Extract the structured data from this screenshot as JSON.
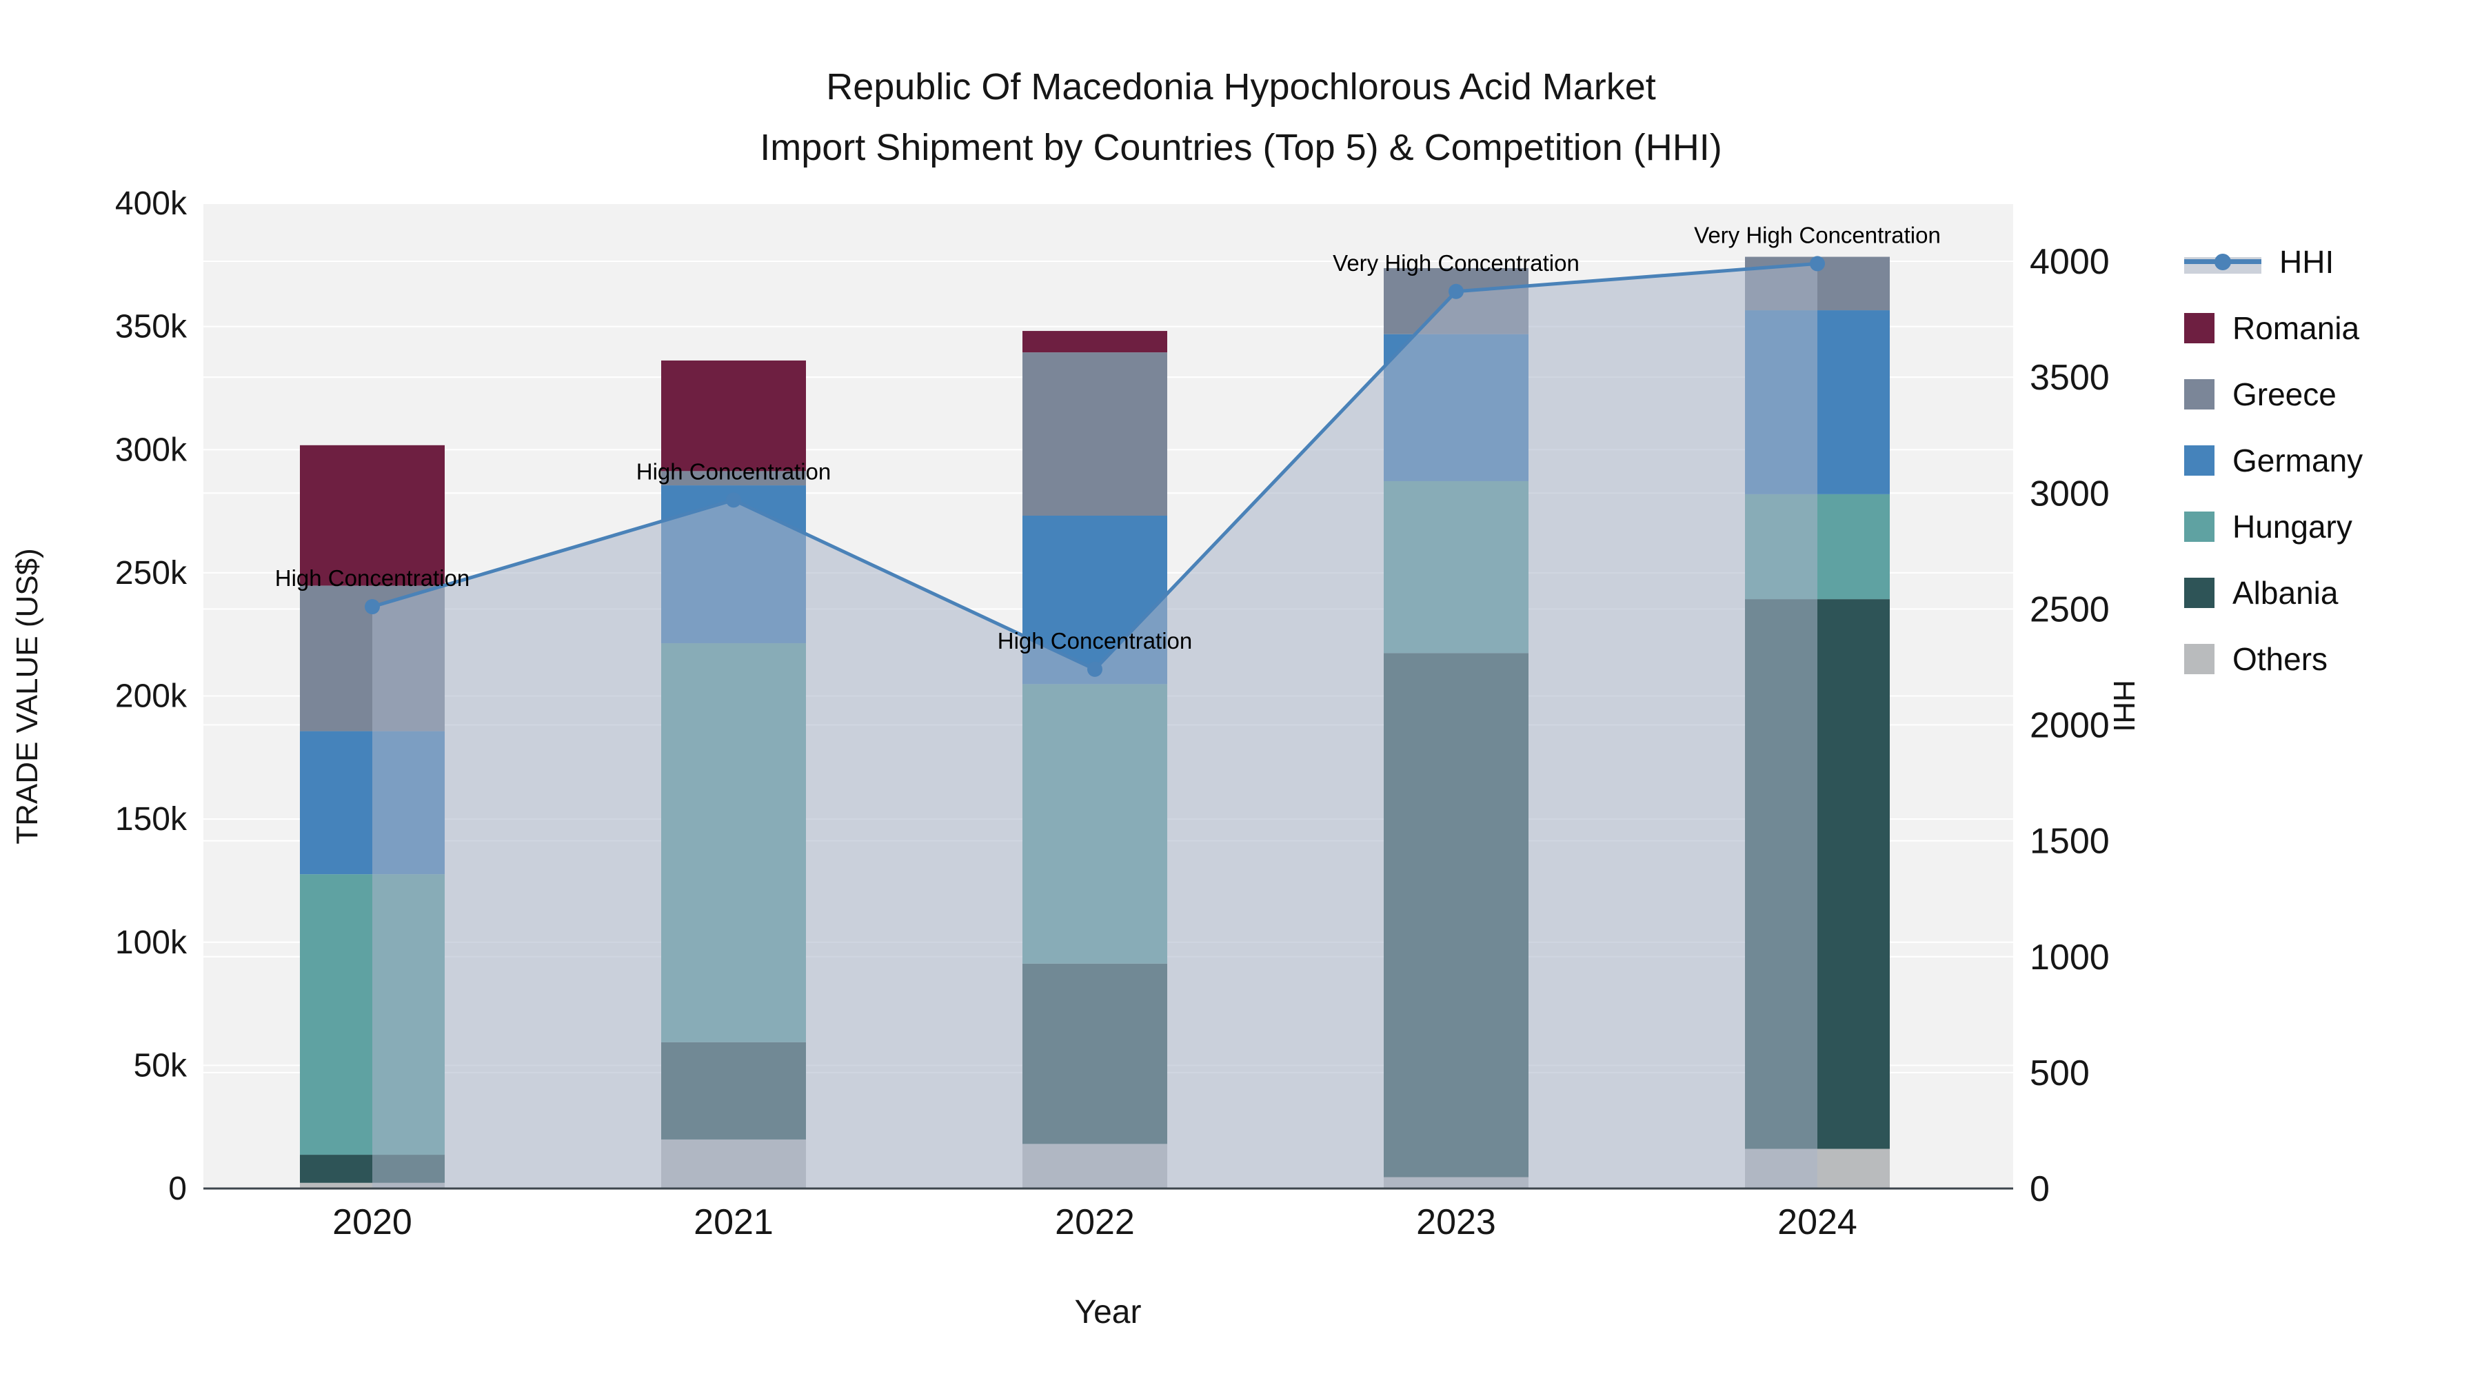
{
  "title": {
    "line1": "Republic Of Macedonia Hypochlorous Acid Market",
    "line2": "Import Shipment by Countries (Top 5) & Competition (HHI)"
  },
  "axes": {
    "x": {
      "title": "Year",
      "categories": [
        "2020",
        "2021",
        "2022",
        "2023",
        "2024"
      ]
    },
    "y_left": {
      "title": "TRADE VALUE (US$)",
      "tick_labels": [
        "0",
        "50k",
        "100k",
        "150k",
        "200k",
        "250k",
        "300k",
        "350k",
        "400k"
      ],
      "tick_values_k": [
        0,
        50,
        100,
        150,
        200,
        250,
        300,
        350,
        400
      ],
      "range_usd": [
        0,
        400000
      ]
    },
    "y_right": {
      "title": "HHI",
      "tick_labels": [
        "0",
        "500",
        "1000",
        "1500",
        "2000",
        "2500",
        "3000",
        "3500",
        "4000"
      ],
      "tick_values": [
        0,
        500,
        1000,
        1500,
        2000,
        2500,
        3000,
        3500,
        4000
      ],
      "range": [
        0,
        4250
      ]
    }
  },
  "legend": {
    "position": "right",
    "items": [
      {
        "label": "HHI",
        "type": "line",
        "color": "#4a82b8"
      },
      {
        "label": "Romania",
        "type": "swatch",
        "color": "#6e1f41"
      },
      {
        "label": "Greece",
        "type": "swatch",
        "color": "#7b8698"
      },
      {
        "label": "Germany",
        "type": "swatch",
        "color": "#4583bb"
      },
      {
        "label": "Hungary",
        "type": "swatch",
        "color": "#5fa2a2"
      },
      {
        "label": "Albania",
        "type": "swatch",
        "color": "#2e5457"
      },
      {
        "label": "Others",
        "type": "swatch",
        "color": "#b9bbbd"
      }
    ]
  },
  "colors": {
    "plot_bg": "#f2f2f2",
    "grid": "#ffffff",
    "axis_line": "#3d464d",
    "text": "#161616",
    "hhi_line": "#4a82b8",
    "hhi_area_fill": "#aab4c8",
    "hhi_area_opacity": 0.55
  },
  "chart_data": {
    "type": "combo: stacked bar (left axis) + line with markers and area fill (right axis)",
    "categories": [
      "2020",
      "2021",
      "2022",
      "2023",
      "2024"
    ],
    "unit": "US$ thousands (trade value), index points (HHI)",
    "stack_order": "bottom to top",
    "series": [
      {
        "name": "Others",
        "color": "#b9bbbd",
        "values_k": [
          2.3,
          19.9,
          18.1,
          4.6,
          16.1
        ]
      },
      {
        "name": "Albania",
        "color": "#2e5457",
        "values_k": [
          11.4,
          39.5,
          73.2,
          212.8,
          223.2
        ]
      },
      {
        "name": "Hungary",
        "color": "#5fa2a2",
        "values_k": [
          113.9,
          162.0,
          113.5,
          69.8,
          42.6
        ]
      },
      {
        "name": "Germany",
        "color": "#4583bb",
        "values_k": [
          58.1,
          64.1,
          68.4,
          59.7,
          74.7
        ]
      },
      {
        "name": "Greece",
        "color": "#7b8698",
        "values_k": [
          59.1,
          5.8,
          66.3,
          26.8,
          21.7
        ]
      },
      {
        "name": "Romania",
        "color": "#6e1f41",
        "values_k": [
          57.0,
          44.9,
          8.7,
          0,
          0
        ]
      }
    ],
    "bar_totals_k": [
      301.8,
      336.2,
      348.2,
      373.7,
      378.3
    ],
    "line_series": {
      "name": "HHI",
      "axis": "right",
      "values": [
        2510,
        2970,
        2240,
        3870,
        3990
      ]
    },
    "annotations": [
      {
        "category": "2020",
        "text": "High Concentration"
      },
      {
        "category": "2021",
        "text": "High Concentration"
      },
      {
        "category": "2022",
        "text": "High Concentration"
      },
      {
        "category": "2023",
        "text": "Very High Concentration"
      },
      {
        "category": "2024",
        "text": "Very High Concentration"
      }
    ],
    "ylim_left_usd": [
      0,
      400000
    ],
    "ylim_right": [
      0,
      4250
    ],
    "grid": true,
    "legend_position": "right"
  }
}
